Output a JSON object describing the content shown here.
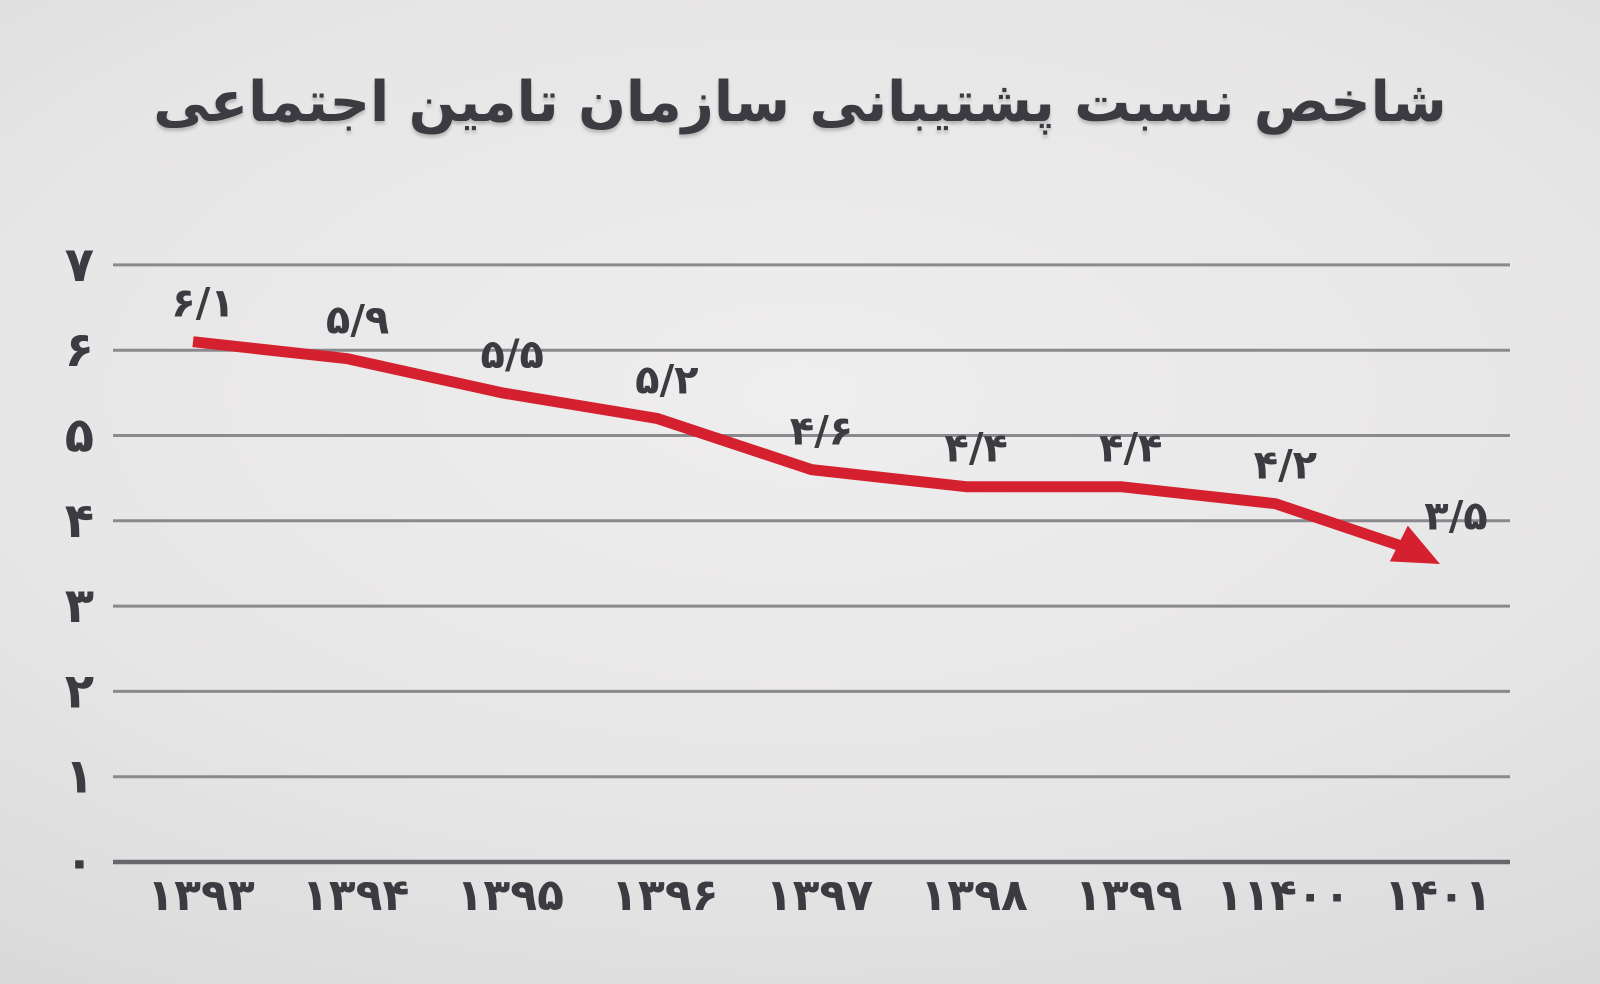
{
  "title": "شاخص نسبت پشتیبانی سازمان تامین اجتماعی",
  "colors": {
    "line": "#d5212f",
    "grid": "#8a8a8e",
    "axis": "#67676c",
    "text": "#3b3b41",
    "bg_center": "#efeeee",
    "bg_edge": "#d0d0d0"
  },
  "chart_data": {
    "type": "line",
    "title": "شاخص نسبت پشتیبانی سازمان تامین اجتماعی",
    "categories": [
      "۱۳۹۳",
      "۱۳۹۴",
      "۱۳۹۵",
      "۱۳۹۶",
      "۱۳۹۷",
      "۱۳۹۸",
      "۱۳۹۹",
      "۱۱۴۰۰",
      "۱۴۰۱"
    ],
    "values": [
      6.1,
      5.9,
      5.5,
      5.2,
      4.6,
      4.4,
      4.4,
      4.2,
      3.5
    ],
    "value_labels": [
      "۶/۱",
      "۵/۹",
      "۵/۵",
      "۵/۲",
      "۴/۶",
      "۴/۴",
      "۴/۴",
      "۴/۲",
      "۳/۵"
    ],
    "y_tick_labels": [
      "۷",
      "۶",
      "۵",
      "۴",
      "۳",
      "۲",
      "۱",
      "۰"
    ],
    "y_tick_values": [
      7,
      6,
      5,
      4,
      3,
      2,
      1,
      0
    ],
    "ylim": [
      0,
      7
    ],
    "xlabel": "",
    "ylabel": "",
    "grid": true,
    "legend": "none",
    "direction": "rtl",
    "line_end": "arrowhead"
  }
}
